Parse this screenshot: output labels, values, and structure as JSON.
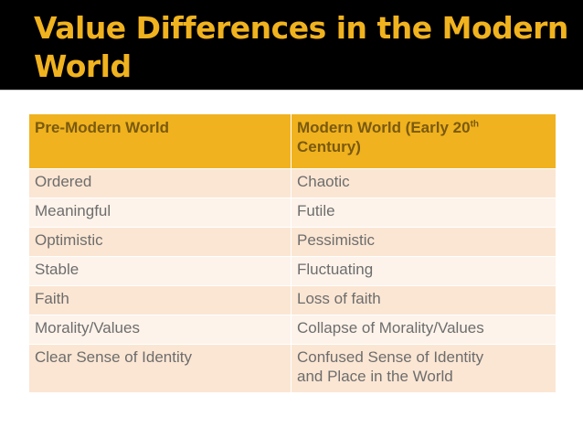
{
  "slide": {
    "title_line1": "Value Differences in the Modern",
    "title_line2": "World"
  },
  "table": {
    "header": {
      "col1": "Pre-Modern World",
      "col2_main": "Modern World (Early 20",
      "col2_sup": "th",
      "col2_tail": "Century)"
    },
    "rows": [
      {
        "pre": "Ordered",
        "modern": "Chaotic"
      },
      {
        "pre": "Meaningful",
        "modern": "Futile"
      },
      {
        "pre": "Optimistic",
        "modern": "Pessimistic"
      },
      {
        "pre": "Stable",
        "modern": "Fluctuating"
      },
      {
        "pre": "Faith",
        "modern": "Loss of faith"
      },
      {
        "pre": "Morality/Values",
        "modern": "Collapse of Morality/Values"
      },
      {
        "pre": "Clear Sense of Identity",
        "modern_line1": "Confused Sense of Identity",
        "modern_line2": "and Place in the World"
      }
    ]
  },
  "colors": {
    "title_background": "#000000",
    "title_text": "#f0b21e",
    "header_fill": "#f0b21e",
    "row_fill_dark": "#fbe6d3",
    "row_fill_light": "#fdf3ea"
  }
}
